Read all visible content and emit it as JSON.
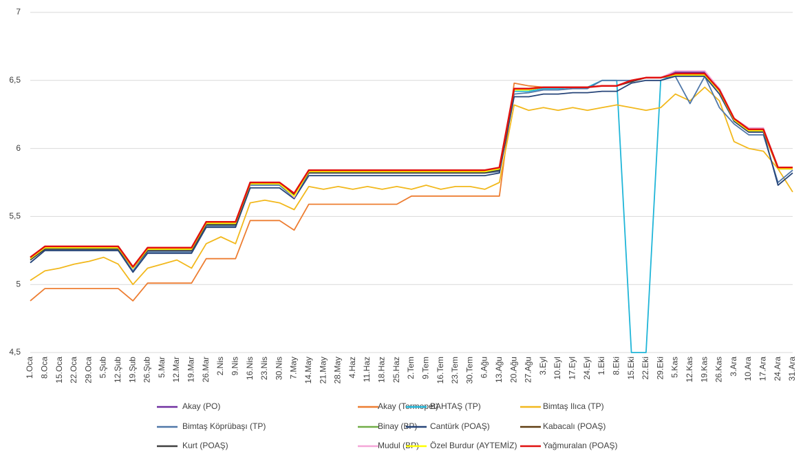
{
  "chart_data": {
    "type": "line",
    "categories": [
      "1.Oca",
      "8.Oca",
      "15.Oca",
      "22.Oca",
      "29.Oca",
      "5.Şub",
      "12.Şub",
      "19.Şub",
      "26.Şub",
      "5.Mar",
      "12.Mar",
      "19.Mar",
      "26.Mar",
      "2.Nis",
      "9.Nis",
      "16.Nis",
      "23.Nis",
      "30.Nis",
      "7.May",
      "14.May",
      "21.May",
      "28.May",
      "4.Haz",
      "11.Haz",
      "18.Haz",
      "25.Haz",
      "2.Tem",
      "9.Tem",
      "16.Tem",
      "23.Tem",
      "30.Tem",
      "6.Ağu",
      "13.Ağu",
      "20.Ağu",
      "27.Ağu",
      "3.Eyl",
      "10.Eyl",
      "17.Eyl",
      "24.Eyl",
      "1.Eki",
      "8.Eki",
      "15.Eki",
      "22.Eki",
      "29.Eki",
      "5.Kas",
      "12.Kas",
      "19.Kas",
      "26.Kas",
      "3.Ara",
      "10.Ara",
      "17.Ara",
      "24.Ara",
      "31.Ara"
    ],
    "ylim": [
      4.5,
      7
    ],
    "yticks": [
      {
        "value": 4.5,
        "label": "4,5"
      },
      5,
      {
        "value": 5.5,
        "label": "5,5"
      },
      6,
      {
        "value": 6.5,
        "label": "6,5"
      },
      7
    ],
    "grid": true,
    "legend": "bottom",
    "series": [
      {
        "name": "Akay (PO)",
        "color": "#7030a0",
        "values": [
          5.2,
          5.28,
          5.28,
          5.28,
          5.28,
          5.28,
          5.28,
          5.13,
          5.27,
          5.27,
          5.27,
          5.27,
          5.45,
          5.45,
          5.45,
          5.75,
          5.75,
          5.75,
          5.66,
          5.83,
          5.83,
          5.83,
          5.83,
          5.83,
          5.83,
          5.83,
          5.83,
          5.83,
          5.83,
          5.83,
          5.83,
          5.83,
          5.85,
          6.44,
          6.44,
          6.45,
          6.45,
          6.45,
          6.45,
          6.46,
          6.46,
          6.5,
          6.52,
          6.52,
          6.56,
          6.56,
          6.56,
          6.44,
          6.22,
          6.15,
          6.15,
          5.86,
          5.86
        ]
      },
      {
        "name": "Akay (Termopet)",
        "color": "#ed7d31",
        "values": [
          4.88,
          4.97,
          4.97,
          4.97,
          4.97,
          4.97,
          4.97,
          4.88,
          5.01,
          5.01,
          5.01,
          5.01,
          5.19,
          5.19,
          5.19,
          5.47,
          5.47,
          5.47,
          5.4,
          5.59,
          5.59,
          5.59,
          5.59,
          5.59,
          5.59,
          5.59,
          5.65,
          5.65,
          5.65,
          5.65,
          5.65,
          5.65,
          5.65,
          6.48,
          6.46,
          6.45,
          6.45,
          6.45,
          6.45,
          6.46,
          6.46,
          6.5,
          6.52,
          6.52,
          6.55,
          6.55,
          6.55,
          6.42,
          6.2,
          6.12,
          6.12,
          5.85,
          5.85
        ]
      },
      {
        "name": "BAHTAŞ (TP)",
        "color": "#1fb5d8",
        "values": [
          5.19,
          5.27,
          5.27,
          5.27,
          5.27,
          5.27,
          5.27,
          5.12,
          5.26,
          5.26,
          5.26,
          5.26,
          5.44,
          5.44,
          5.44,
          5.74,
          5.74,
          5.74,
          5.65,
          5.83,
          5.83,
          5.83,
          5.83,
          5.83,
          5.83,
          5.83,
          5.83,
          5.83,
          5.83,
          5.83,
          5.83,
          5.83,
          5.84,
          6.42,
          6.42,
          6.44,
          6.44,
          6.45,
          6.45,
          6.5,
          6.5,
          4.5,
          4.5,
          6.5,
          6.54,
          6.54,
          6.54,
          6.42,
          6.2,
          6.13,
          6.13,
          5.85,
          5.85
        ]
      },
      {
        "name": "Bimtaş Ilıca (TP)",
        "color": "#f2b81c",
        "values": [
          5.03,
          5.1,
          5.12,
          5.15,
          5.17,
          5.2,
          5.15,
          5.0,
          5.12,
          5.15,
          5.18,
          5.12,
          5.3,
          5.35,
          5.3,
          5.6,
          5.62,
          5.6,
          5.55,
          5.72,
          5.7,
          5.72,
          5.7,
          5.72,
          5.7,
          5.72,
          5.7,
          5.73,
          5.7,
          5.72,
          5.72,
          5.7,
          5.75,
          6.32,
          6.28,
          6.3,
          6.28,
          6.3,
          6.28,
          6.3,
          6.32,
          6.3,
          6.28,
          6.3,
          6.4,
          6.35,
          6.45,
          6.35,
          6.05,
          6.0,
          5.98,
          5.85,
          5.68
        ]
      },
      {
        "name": "Bimtaş Köprübaşı (TP)",
        "color": "#4f77a8",
        "values": [
          5.16,
          5.25,
          5.25,
          5.25,
          5.25,
          5.25,
          5.25,
          5.1,
          5.24,
          5.24,
          5.24,
          5.24,
          5.43,
          5.43,
          5.43,
          5.73,
          5.73,
          5.73,
          5.64,
          5.82,
          5.82,
          5.82,
          5.82,
          5.82,
          5.82,
          5.82,
          5.82,
          5.82,
          5.82,
          5.82,
          5.82,
          5.82,
          5.83,
          6.4,
          6.41,
          6.43,
          6.43,
          6.44,
          6.44,
          6.5,
          6.5,
          6.5,
          6.52,
          6.52,
          6.53,
          6.33,
          6.53,
          6.3,
          6.18,
          6.1,
          6.1,
          5.75,
          5.84
        ]
      },
      {
        "name": "Binay (BP)",
        "color": "#70ad47",
        "values": [
          5.19,
          5.27,
          5.27,
          5.27,
          5.27,
          5.27,
          5.27,
          5.12,
          5.26,
          5.26,
          5.26,
          5.26,
          5.44,
          5.44,
          5.44,
          5.74,
          5.74,
          5.74,
          5.66,
          5.83,
          5.83,
          5.83,
          5.83,
          5.83,
          5.83,
          5.83,
          5.83,
          5.83,
          5.83,
          5.83,
          5.83,
          5.83,
          5.85,
          6.43,
          6.43,
          6.45,
          6.45,
          6.45,
          6.45,
          6.46,
          6.46,
          6.49,
          6.52,
          6.52,
          6.54,
          6.54,
          6.54,
          6.42,
          6.21,
          6.13,
          6.13,
          5.85,
          5.85
        ]
      },
      {
        "name": "Cantürk (POAŞ)",
        "color": "#264478",
        "values": [
          5.16,
          5.25,
          5.25,
          5.25,
          5.25,
          5.25,
          5.25,
          5.09,
          5.23,
          5.23,
          5.23,
          5.23,
          5.42,
          5.42,
          5.42,
          5.71,
          5.71,
          5.71,
          5.63,
          5.8,
          5.8,
          5.8,
          5.8,
          5.8,
          5.8,
          5.8,
          5.8,
          5.8,
          5.8,
          5.8,
          5.8,
          5.8,
          5.82,
          6.38,
          6.38,
          6.4,
          6.4,
          6.41,
          6.41,
          6.42,
          6.42,
          6.48,
          6.5,
          6.5,
          6.53,
          6.53,
          6.53,
          6.4,
          6.2,
          6.12,
          6.12,
          5.73,
          5.82
        ]
      },
      {
        "name": "Kabacalı (POAŞ)",
        "color": "#5e3c11",
        "values": [
          5.2,
          5.28,
          5.28,
          5.28,
          5.28,
          5.28,
          5.28,
          5.13,
          5.27,
          5.27,
          5.27,
          5.27,
          5.46,
          5.46,
          5.46,
          5.75,
          5.75,
          5.75,
          5.67,
          5.84,
          5.84,
          5.84,
          5.84,
          5.84,
          5.84,
          5.84,
          5.84,
          5.84,
          5.84,
          5.84,
          5.84,
          5.84,
          5.86,
          6.44,
          6.44,
          6.45,
          6.45,
          6.45,
          6.45,
          6.46,
          6.46,
          6.5,
          6.52,
          6.52,
          6.54,
          6.54,
          6.54,
          6.43,
          6.22,
          6.14,
          6.14,
          5.86,
          5.86
        ]
      },
      {
        "name": "Kurt (POAŞ)",
        "color": "#404040",
        "values": [
          5.18,
          5.26,
          5.26,
          5.26,
          5.26,
          5.26,
          5.26,
          5.12,
          5.25,
          5.25,
          5.25,
          5.25,
          5.44,
          5.44,
          5.44,
          5.74,
          5.74,
          5.74,
          5.66,
          5.82,
          5.82,
          5.82,
          5.82,
          5.82,
          5.82,
          5.82,
          5.82,
          5.82,
          5.82,
          5.82,
          5.82,
          5.82,
          5.84,
          6.43,
          6.43,
          6.45,
          6.45,
          6.45,
          6.45,
          6.46,
          6.46,
          6.49,
          6.52,
          6.52,
          6.54,
          6.54,
          6.54,
          6.42,
          6.21,
          6.13,
          6.13,
          5.85,
          5.85
        ]
      },
      {
        "name": "Mudul (BP)",
        "color": "#f4a6d8",
        "values": [
          5.2,
          5.28,
          5.28,
          5.28,
          5.28,
          5.28,
          5.28,
          5.13,
          5.27,
          5.27,
          5.27,
          5.27,
          5.46,
          5.46,
          5.46,
          5.75,
          5.75,
          5.75,
          5.64,
          5.84,
          5.84,
          5.84,
          5.84,
          5.84,
          5.84,
          5.84,
          5.84,
          5.84,
          5.84,
          5.84,
          5.84,
          5.84,
          5.86,
          6.44,
          6.44,
          6.45,
          6.45,
          6.45,
          6.45,
          6.46,
          6.46,
          6.5,
          6.52,
          6.52,
          6.57,
          6.57,
          6.57,
          6.44,
          6.22,
          6.15,
          6.15,
          5.86,
          5.86
        ]
      },
      {
        "name": "Özel Burdur (AYTEMİZ)",
        "color": "#ffff00",
        "values": [
          5.19,
          5.27,
          5.27,
          5.27,
          5.27,
          5.27,
          5.27,
          5.12,
          5.26,
          5.26,
          5.26,
          5.26,
          5.45,
          5.45,
          5.45,
          5.74,
          5.74,
          5.74,
          5.65,
          5.83,
          5.83,
          5.83,
          5.83,
          5.83,
          5.83,
          5.83,
          5.83,
          5.83,
          5.83,
          5.83,
          5.83,
          5.83,
          5.85,
          6.43,
          6.43,
          6.45,
          6.45,
          6.45,
          6.45,
          6.46,
          6.46,
          6.5,
          6.52,
          6.52,
          6.54,
          6.54,
          6.54,
          6.42,
          6.21,
          6.13,
          6.13,
          5.85,
          5.85
        ]
      },
      {
        "name": "Yağmuralan (POAŞ)",
        "color": "#e0100f",
        "values": [
          5.2,
          5.28,
          5.28,
          5.28,
          5.28,
          5.28,
          5.28,
          5.13,
          5.27,
          5.27,
          5.27,
          5.27,
          5.46,
          5.46,
          5.46,
          5.75,
          5.75,
          5.75,
          5.67,
          5.84,
          5.84,
          5.84,
          5.84,
          5.84,
          5.84,
          5.84,
          5.84,
          5.84,
          5.84,
          5.84,
          5.84,
          5.84,
          5.86,
          6.44,
          6.44,
          6.45,
          6.45,
          6.45,
          6.45,
          6.46,
          6.46,
          6.5,
          6.52,
          6.52,
          6.55,
          6.55,
          6.55,
          6.43,
          6.22,
          6.14,
          6.14,
          5.86,
          5.86
        ]
      }
    ]
  }
}
